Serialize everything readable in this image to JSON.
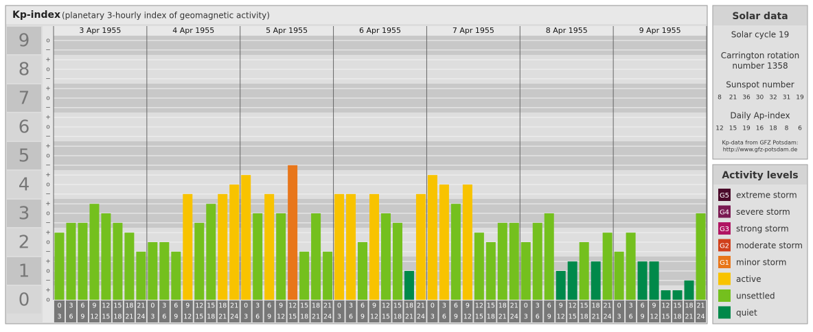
{
  "chart_data": {
    "type": "bar",
    "title": "Kp-index",
    "subtitle": "(planetary 3-hourly index of geomagnetic activity)",
    "ylim": [
      0,
      9.5
    ],
    "yticks": [
      0,
      1,
      2,
      3,
      4,
      5,
      6,
      7,
      8,
      9
    ],
    "minor_ticks": [
      {
        "value": 0,
        "label": "o"
      },
      {
        "value": 0.33,
        "label": "+"
      },
      {
        "value": 0.67,
        "label": "−"
      },
      {
        "value": 1,
        "label": "o"
      },
      {
        "value": 1.33,
        "label": "+"
      },
      {
        "value": 1.67,
        "label": "−"
      },
      {
        "value": 2,
        "label": "o"
      },
      {
        "value": 2.33,
        "label": "+"
      },
      {
        "value": 2.67,
        "label": "−"
      },
      {
        "value": 3,
        "label": "o"
      },
      {
        "value": 3.33,
        "label": "+"
      },
      {
        "value": 3.67,
        "label": "−"
      },
      {
        "value": 4,
        "label": "o"
      },
      {
        "value": 4.33,
        "label": "+"
      },
      {
        "value": 4.67,
        "label": "−"
      },
      {
        "value": 5,
        "label": "o"
      },
      {
        "value": 5.33,
        "label": "+"
      },
      {
        "value": 5.67,
        "label": "−"
      },
      {
        "value": 6,
        "label": "o"
      },
      {
        "value": 6.33,
        "label": "+"
      },
      {
        "value": 6.67,
        "label": "−"
      },
      {
        "value": 7,
        "label": "o"
      },
      {
        "value": 7.33,
        "label": "+"
      },
      {
        "value": 7.67,
        "label": "−"
      },
      {
        "value": 8,
        "label": "o"
      },
      {
        "value": 8.33,
        "label": "+"
      },
      {
        "value": 8.67,
        "label": "−"
      },
      {
        "value": 9,
        "label": "o"
      }
    ],
    "hours": [
      {
        "from": "0",
        "to": "3"
      },
      {
        "from": "3",
        "to": "6"
      },
      {
        "from": "6",
        "to": "9"
      },
      {
        "from": "9",
        "to": "12"
      },
      {
        "from": "12",
        "to": "15"
      },
      {
        "from": "15",
        "to": "18"
      },
      {
        "from": "18",
        "to": "21"
      },
      {
        "from": "21",
        "to": "24"
      }
    ],
    "days": [
      {
        "date": "3 Apr 1955",
        "values": [
          2.33,
          2.67,
          2.67,
          3.33,
          3,
          2.67,
          2.33,
          1.67
        ],
        "colors": [
          "#74c01e",
          "#74c01e",
          "#74c01e",
          "#74c01e",
          "#74c01e",
          "#74c01e",
          "#74c01e",
          "#74c01e"
        ]
      },
      {
        "date": "4 Apr 1955",
        "values": [
          2,
          2,
          1.67,
          3.67,
          2.67,
          3.33,
          3.67,
          4
        ],
        "colors": [
          "#74c01e",
          "#74c01e",
          "#74c01e",
          "#f8c300",
          "#74c01e",
          "#74c01e",
          "#f8c300",
          "#f8c300"
        ]
      },
      {
        "date": "5 Apr 1955",
        "values": [
          4.33,
          3,
          3.67,
          3,
          4.67,
          1.67,
          3,
          1.67
        ],
        "colors": [
          "#f8c300",
          "#74c01e",
          "#f8c300",
          "#74c01e",
          "#e8761a",
          "#74c01e",
          "#74c01e",
          "#74c01e"
        ]
      },
      {
        "date": "6 Apr 1955",
        "values": [
          3.67,
          3.67,
          2,
          3.67,
          3,
          2.67,
          1,
          3.67
        ],
        "colors": [
          "#f8c300",
          "#f8c300",
          "#74c01e",
          "#f8c300",
          "#74c01e",
          "#74c01e",
          "#00894a",
          "#f8c300"
        ]
      },
      {
        "date": "7 Apr 1955",
        "values": [
          4.33,
          4,
          3.33,
          4,
          2.33,
          2,
          2.67,
          2.67
        ],
        "colors": [
          "#f8c300",
          "#f8c300",
          "#74c01e",
          "#f8c300",
          "#74c01e",
          "#74c01e",
          "#74c01e",
          "#74c01e"
        ]
      },
      {
        "date": "8 Apr 1955",
        "values": [
          2,
          2.67,
          3,
          1,
          1.33,
          2,
          1.33,
          2.33
        ],
        "colors": [
          "#74c01e",
          "#74c01e",
          "#74c01e",
          "#00894a",
          "#00894a",
          "#74c01e",
          "#00894a",
          "#74c01e"
        ]
      },
      {
        "date": "9 Apr 1955",
        "values": [
          1.67,
          2.33,
          1.33,
          1.33,
          0.33,
          0.33,
          0.67,
          3
        ],
        "colors": [
          "#74c01e",
          "#74c01e",
          "#00894a",
          "#00894a",
          "#00894a",
          "#00894a",
          "#00894a",
          "#74c01e"
        ]
      }
    ]
  },
  "solar": {
    "title": "Solar data",
    "cycle": "Solar cycle 19",
    "rotation": "Carrington rotation number 1358",
    "sunspot_title": "Sunspot number",
    "sunspot": [
      "8",
      "21",
      "36",
      "30",
      "32",
      "31",
      "19"
    ],
    "ap_title": "Daily Ap-index",
    "ap": [
      "12",
      "15",
      "19",
      "16",
      "18",
      "8",
      "6"
    ],
    "source": "Kp-data from GFZ Potsdam:",
    "source_url": "http://www.gfz-potsdam.de"
  },
  "activity": {
    "title": "Activity levels",
    "levels": [
      {
        "code": "G5",
        "label": "extreme storm",
        "color": "#4a0a2a"
      },
      {
        "code": "G4",
        "label": "severe storm",
        "color": "#7a1a52"
      },
      {
        "code": "G3",
        "label": "strong storm",
        "color": "#b01462"
      },
      {
        "code": "G2",
        "label": "moderate storm",
        "color": "#d0401c"
      },
      {
        "code": "G1",
        "label": "minor storm",
        "color": "#e8761a"
      },
      {
        "label": "active",
        "color": "#f8c300"
      },
      {
        "label": "unsettled",
        "color": "#74c01e"
      },
      {
        "label": "quiet",
        "color": "#00894a"
      }
    ]
  }
}
